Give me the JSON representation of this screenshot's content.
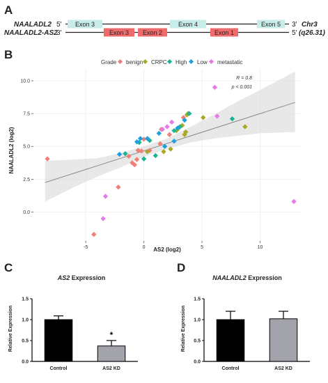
{
  "panel_labels": {
    "a": "A",
    "b": "B",
    "c": "C",
    "d": "D"
  },
  "panel_a": {
    "genes": [
      {
        "name": "NAALADL2",
        "strand_left": "5'",
        "strand_right": "3'",
        "right_label": "Chr3",
        "color": "#c8ece8",
        "exons": [
          {
            "label": "Exon 3"
          },
          {
            "label": "Exon 4"
          },
          {
            "label": "Exon 5"
          }
        ]
      },
      {
        "name": "NAALADL2-AS2",
        "strand_left": "3'",
        "strand_right": "5'",
        "right_label": "(q26.31)",
        "color": "#ef6b6b",
        "exons": [
          {
            "label": "Exon 3"
          },
          {
            "label": "Exon 2"
          },
          {
            "label": "Exon 1"
          }
        ]
      }
    ]
  },
  "chart_data": [
    {
      "type": "scatter",
      "xlabel": "AS2 (log2)",
      "ylabel": "NAALADL2 (log2)",
      "xlim": [
        -9.5,
        13.5
      ],
      "ylim": [
        -2.2,
        10.9
      ],
      "xticks": [
        -5,
        0,
        5,
        10
      ],
      "yticks": [
        0.0,
        2.5,
        5.0,
        7.5,
        10.0
      ],
      "ytick_labels": [
        "0.0",
        "2.5",
        "5.0",
        "7.5",
        "10.0"
      ],
      "grid": true,
      "legend_position": "top",
      "legend_title": "Grade",
      "annotation": {
        "r_label": "R = 0.8",
        "p_label": "p < 0.001"
      },
      "regression": {
        "x": [
          -8.5,
          13
        ],
        "y": [
          2.25,
          8.35
        ]
      },
      "confidence_band": {
        "x": [
          -8.5,
          -6,
          -4,
          -2,
          0,
          2,
          4,
          6,
          8,
          10,
          13
        ],
        "lower": [
          0.8,
          1.9,
          2.7,
          3.4,
          4.2,
          4.8,
          5.3,
          5.6,
          5.8,
          6.0,
          6.1
        ],
        "upper": [
          3.9,
          4.0,
          4.1,
          4.5,
          5.0,
          5.6,
          6.5,
          7.4,
          8.4,
          9.3,
          10.7
        ]
      },
      "series": [
        {
          "name": "benign",
          "color": "#f07f78",
          "points": [
            [
              -8.3,
              4.05
            ],
            [
              -4.3,
              -1.7
            ],
            [
              -2.2,
              1.9
            ],
            [
              -1.3,
              4.25
            ],
            [
              -1.0,
              3.75
            ],
            [
              -0.8,
              3.6
            ],
            [
              -0.6,
              4.0
            ],
            [
              -0.5,
              4.7
            ],
            [
              -0.2,
              4.65
            ],
            [
              0.0,
              5.55
            ],
            [
              0.5,
              4.7
            ],
            [
              1.4,
              5.2
            ],
            [
              1.5,
              6.3
            ],
            [
              2.2,
              5.9
            ],
            [
              3.4,
              7.2
            ]
          ]
        },
        {
          "name": "CRPC",
          "color": "#a8a825",
          "points": [
            [
              0.3,
              4.6
            ],
            [
              1.7,
              4.6
            ],
            [
              2.3,
              4.8
            ],
            [
              2.8,
              6.2
            ],
            [
              3.0,
              6.4
            ],
            [
              3.3,
              6.6
            ],
            [
              3.5,
              5.9
            ],
            [
              3.6,
              6.1
            ],
            [
              3.7,
              7.4
            ],
            [
              3.8,
              7.5
            ],
            [
              5.1,
              7.2
            ],
            [
              8.7,
              6.5
            ]
          ]
        },
        {
          "name": "High",
          "color": "#1ab394",
          "points": [
            [
              -1.6,
              4.45
            ],
            [
              -0.4,
              5.3
            ],
            [
              0.0,
              4.05
            ],
            [
              0.5,
              5.45
            ],
            [
              1.0,
              4.3
            ],
            [
              2.6,
              6.2
            ],
            [
              3.1,
              6.5
            ],
            [
              3.9,
              7.5
            ],
            [
              7.6,
              7.1
            ]
          ]
        },
        {
          "name": "Low",
          "color": "#1e9fe0",
          "points": [
            [
              -2.1,
              4.4
            ],
            [
              -0.6,
              5.35
            ],
            [
              -0.3,
              5.6
            ],
            [
              0.3,
              5.6
            ],
            [
              1.8,
              5.0
            ],
            [
              2.6,
              5.4
            ],
            [
              1.3,
              6.0
            ],
            [
              2.9,
              6.4
            ],
            [
              3.5,
              7.0
            ]
          ]
        },
        {
          "name": "metastatic",
          "color": "#e879e8",
          "points": [
            [
              -3.5,
              -0.5
            ],
            [
              -3.3,
              1.2
            ],
            [
              1.6,
              6.3
            ],
            [
              2.0,
              6.5
            ],
            [
              2.4,
              6.85
            ],
            [
              6.1,
              9.5
            ],
            [
              6.3,
              7.3
            ],
            [
              12.9,
              0.8
            ]
          ]
        }
      ]
    },
    {
      "type": "bar",
      "title_gene": "AS2",
      "title_suffix": " Expression",
      "ylabel": "Relative Expression",
      "ylim": [
        0,
        1.5
      ],
      "yticks": [
        0.0,
        0.5,
        1.0,
        1.5
      ],
      "ytick_labels": [
        "0.0",
        "0.5",
        "1.0",
        "1.5"
      ],
      "categories": [
        "Control",
        "AS2 KD"
      ],
      "values": [
        1.0,
        0.37
      ],
      "errors": [
        0.09,
        0.13
      ],
      "bar_colors": [
        "#000000",
        "#a3a3ab"
      ],
      "significance": [
        {
          "category_index": 1,
          "label": "*"
        }
      ]
    },
    {
      "type": "bar",
      "title_gene": "NAALADL2",
      "title_suffix": " Expression",
      "ylabel": "Relative Expression",
      "ylim": [
        0,
        1.5
      ],
      "yticks": [
        0.0,
        0.5,
        1.0,
        1.5
      ],
      "ytick_labels": [
        "0.0",
        "0.5",
        "1.0",
        "1.5"
      ],
      "categories": [
        "Control",
        "AS2 KD"
      ],
      "values": [
        1.0,
        1.02
      ],
      "errors": [
        0.2,
        0.18
      ],
      "bar_colors": [
        "#000000",
        "#a3a3ab"
      ],
      "significance": []
    }
  ]
}
